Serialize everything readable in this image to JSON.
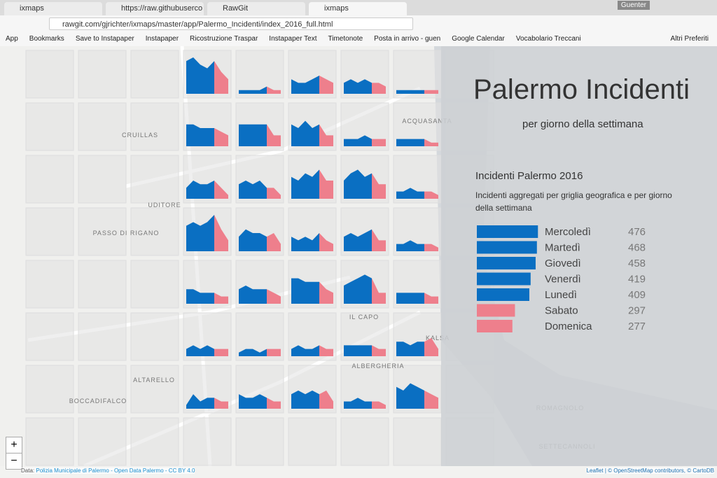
{
  "browser": {
    "tabs": [
      "ixmaps",
      "https://raw.githubuserco",
      "RawGit",
      "ixmaps"
    ],
    "user": "Guenter",
    "url": "rawgit.com/gjrichter/ixmaps/master/app/Palermo_Incidenti/index_2016_full.html",
    "bookmarks": [
      "App",
      "Bookmarks",
      "Save to Instapaper",
      "Instapaper",
      "Ricostruzione Traspar",
      "Instapaper Text",
      "Timetonote",
      "Posta in arrivo - guen",
      "Google Calendar",
      "Vocabolario Treccani"
    ],
    "other_bookmarks": "Altri Preferiti"
  },
  "map": {
    "labels": [
      "CRUILLAS",
      "UDITORE",
      "PASSO DI RIGANO",
      "ALTARELLO",
      "BOCCADIFALCO",
      "ACQUASANTA",
      "IL CAPO",
      "KALSA",
      "ALBERGHERIA",
      "ROMAGNOLO",
      "SETTECANNOLI"
    ],
    "zoom": [
      "+",
      "−"
    ],
    "data_prefix": "Data:",
    "data_source": "Polizia Municipale di Palermo - Open Data Palermo - CC BY 4.0",
    "attribution": "Leaflet | © OpenStreetMap contributors, © CartoDB"
  },
  "chart_data": {
    "type": "grid-area",
    "ylim": [
      0,
      10
    ],
    "weekday_color": "#0a6fc2",
    "weekend_color": "#ee7f8c",
    "rows": [
      [
        [
          9,
          10,
          8,
          7,
          9,
          6,
          4
        ],
        [
          1,
          1,
          1,
          1,
          2,
          1,
          1
        ],
        [
          4,
          3,
          3,
          4,
          5,
          4,
          3
        ],
        [
          3,
          4,
          3,
          4,
          3,
          3,
          2
        ],
        [
          1,
          1,
          1,
          1,
          1,
          1,
          1
        ]
      ],
      [
        [
          6,
          6,
          5,
          5,
          5,
          4,
          3
        ],
        [
          6,
          6,
          6,
          6,
          6,
          3,
          3
        ],
        [
          6,
          5,
          7,
          5,
          6,
          3,
          3
        ],
        [
          2,
          2,
          2,
          3,
          2,
          2,
          2
        ],
        [
          2,
          2,
          2,
          2,
          2,
          1,
          1
        ]
      ],
      [
        [
          3,
          5,
          4,
          4,
          5,
          3,
          1
        ],
        [
          4,
          5,
          4,
          5,
          3,
          3,
          1
        ],
        [
          6,
          5,
          7,
          6,
          8,
          5,
          5
        ],
        [
          5,
          7,
          8,
          6,
          7,
          4,
          4
        ],
        [
          2,
          2,
          3,
          2,
          2,
          2,
          1
        ]
      ],
      [
        [
          7,
          8,
          7,
          8,
          10,
          6,
          3
        ],
        [
          4,
          6,
          5,
          5,
          4,
          5,
          2
        ],
        [
          4,
          3,
          4,
          3,
          5,
          3,
          2
        ],
        [
          4,
          5,
          4,
          5,
          6,
          3,
          3
        ],
        [
          2,
          2,
          3,
          2,
          2,
          2,
          1
        ]
      ],
      [
        [
          4,
          4,
          3,
          3,
          3,
          2,
          2
        ],
        [
          4,
          5,
          4,
          4,
          4,
          3,
          2
        ],
        [
          7,
          7,
          6,
          6,
          6,
          4,
          3
        ],
        [
          5,
          6,
          7,
          8,
          7,
          3,
          3
        ],
        [
          3,
          3,
          3,
          3,
          3,
          2,
          2
        ]
      ],
      [
        [
          2,
          3,
          2,
          3,
          2,
          2,
          2
        ],
        [
          1,
          2,
          2,
          1,
          2,
          2,
          2
        ],
        [
          2,
          3,
          2,
          2,
          3,
          2,
          2
        ],
        [
          3,
          3,
          3,
          3,
          3,
          2,
          2
        ],
        [
          4,
          4,
          3,
          4,
          4,
          5,
          2
        ]
      ],
      [
        [
          1,
          4,
          2,
          3,
          3,
          2,
          2
        ],
        [
          4,
          3,
          3,
          4,
          3,
          2,
          2
        ],
        [
          4,
          5,
          4,
          5,
          4,
          5,
          2
        ],
        [
          2,
          2,
          3,
          2,
          2,
          2,
          1
        ],
        [
          6,
          5,
          7,
          6,
          5,
          4,
          3
        ]
      ]
    ]
  },
  "panel": {
    "title": "Palermo Incidenti",
    "subtitle": "per giorno della settimana",
    "heading": "Incidenti Palermo 2016",
    "description": "Incidenti aggregati per griglia geografica e per giorno della settimana",
    "legend": {
      "type": "bar",
      "xlim": [
        0,
        480
      ],
      "categories": [
        "Mercoledì",
        "Martedì",
        "Giovedì",
        "Venerdì",
        "Lunedì",
        "Sabato",
        "Domenica"
      ],
      "values": [
        476,
        468,
        458,
        419,
        409,
        297,
        277
      ],
      "colors": [
        "#0a6fc2",
        "#0a6fc2",
        "#0a6fc2",
        "#0a6fc2",
        "#0a6fc2",
        "#ee7f8c",
        "#ee7f8c"
      ]
    }
  }
}
